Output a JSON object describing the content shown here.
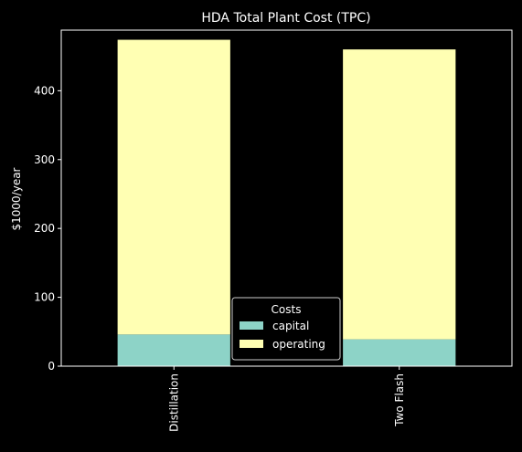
{
  "chart_data": {
    "type": "bar",
    "stacked": true,
    "title": "HDA Total Plant Cost (TPC)",
    "xlabel": "",
    "ylabel": "$1000/year",
    "categories": [
      "Distillation",
      "Two Flash"
    ],
    "series": [
      {
        "name": "capital",
        "values": [
          46,
          39
        ],
        "color": "#8dd3c7"
      },
      {
        "name": "operating",
        "values": [
          428,
          421
        ],
        "color": "#ffffb3"
      }
    ],
    "ylim": [
      0,
      488
    ],
    "yticks": [
      0,
      100,
      200,
      300,
      400
    ],
    "grid": false,
    "legend": {
      "title": "Costs",
      "position": "lower-center"
    },
    "background": "#000000",
    "axis_color": "#ffffff"
  }
}
